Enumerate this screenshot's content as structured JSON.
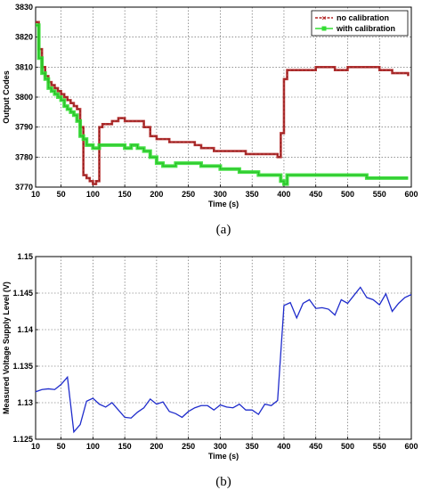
{
  "chart_data": [
    {
      "type": "line",
      "caption": "(a)",
      "xlabel": "Time (s)",
      "ylabel": "Output Codes",
      "xlim": [
        10,
        600
      ],
      "ylim": [
        3770,
        3830
      ],
      "xticks": [
        10,
        50,
        100,
        150,
        200,
        250,
        300,
        350,
        400,
        450,
        500,
        550,
        600
      ],
      "yticks": [
        3770,
        3780,
        3790,
        3800,
        3810,
        3820,
        3830
      ],
      "grid": true,
      "legend_position": "top-right",
      "series": [
        {
          "name": "no calibration",
          "color": "#b22222",
          "marker": "x",
          "x": [
            10,
            15,
            20,
            25,
            30,
            35,
            40,
            45,
            50,
            55,
            60,
            65,
            70,
            75,
            80,
            85,
            90,
            95,
            100,
            105,
            110,
            115,
            120,
            130,
            140,
            150,
            160,
            170,
            180,
            190,
            200,
            210,
            220,
            230,
            240,
            250,
            260,
            270,
            280,
            290,
            300,
            310,
            320,
            330,
            340,
            350,
            360,
            370,
            380,
            390,
            395,
            400,
            405,
            410,
            420,
            430,
            440,
            450,
            460,
            470,
            480,
            490,
            500,
            510,
            520,
            530,
            540,
            550,
            560,
            570,
            580,
            590,
            595
          ],
          "y": [
            3825,
            3816,
            3810,
            3807,
            3805,
            3804,
            3803,
            3802,
            3801,
            3800,
            3799,
            3798,
            3797,
            3796,
            3790,
            3774,
            3773,
            3772,
            3771,
            3772,
            3790,
            3791,
            3791,
            3792,
            3793,
            3792,
            3792,
            3792,
            3790,
            3787,
            3786,
            3786,
            3785,
            3785,
            3785,
            3785,
            3784,
            3783,
            3783,
            3782,
            3782,
            3782,
            3782,
            3782,
            3781,
            3781,
            3781,
            3781,
            3781,
            3780,
            3788,
            3806,
            3809,
            3809,
            3809,
            3809,
            3809,
            3810,
            3810,
            3810,
            3809,
            3809,
            3810,
            3810,
            3810,
            3810,
            3810,
            3809,
            3809,
            3808,
            3808,
            3808,
            3807
          ]
        },
        {
          "name": "with calibration",
          "color": "#33dd33",
          "marker": "s",
          "x": [
            10,
            15,
            20,
            25,
            30,
            35,
            40,
            45,
            50,
            55,
            60,
            65,
            70,
            75,
            80,
            85,
            90,
            95,
            100,
            110,
            120,
            130,
            140,
            150,
            160,
            170,
            180,
            190,
            200,
            210,
            220,
            230,
            240,
            250,
            260,
            270,
            280,
            290,
            300,
            310,
            320,
            330,
            340,
            350,
            360,
            370,
            380,
            390,
            395,
            400,
            405,
            410,
            420,
            430,
            440,
            450,
            460,
            470,
            480,
            490,
            500,
            510,
            520,
            530,
            540,
            550,
            560,
            570,
            580,
            590,
            595
          ],
          "y": [
            3824,
            3813,
            3808,
            3806,
            3803,
            3802,
            3801,
            3800,
            3799,
            3797,
            3796,
            3795,
            3794,
            3792,
            3787,
            3786,
            3784,
            3784,
            3783,
            3784,
            3784,
            3784,
            3784,
            3783,
            3784,
            3783,
            3782,
            3780,
            3778,
            3777,
            3777,
            3778,
            3778,
            3778,
            3778,
            3777,
            3777,
            3777,
            3776,
            3776,
            3776,
            3775,
            3775,
            3775,
            3774,
            3774,
            3774,
            3774,
            3772,
            3771,
            3774,
            3774,
            3774,
            3774,
            3774,
            3774,
            3774,
            3774,
            3774,
            3774,
            3774,
            3774,
            3774,
            3773,
            3773,
            3773,
            3773,
            3773,
            3773,
            3773,
            3773
          ]
        }
      ]
    },
    {
      "type": "line",
      "caption": "(b)",
      "xlabel": "Time (s)",
      "ylabel": "Measured Voltage Supply Level (V)",
      "xlim": [
        10,
        600
      ],
      "ylim": [
        1.125,
        1.15
      ],
      "xticks": [
        10,
        50,
        100,
        150,
        200,
        250,
        300,
        350,
        400,
        450,
        500,
        550,
        600
      ],
      "yticks": [
        1.125,
        1.13,
        1.135,
        1.14,
        1.145,
        1.15
      ],
      "ytick_labels": [
        "1.125",
        "1.13",
        "1.135",
        "1.14",
        "1.145",
        "1.15"
      ],
      "grid": true,
      "series": [
        {
          "color": "#1f2ccc",
          "x": [
            10,
            20,
            30,
            40,
            50,
            60,
            70,
            80,
            90,
            100,
            110,
            120,
            130,
            140,
            150,
            160,
            170,
            180,
            190,
            200,
            210,
            220,
            230,
            240,
            250,
            260,
            270,
            280,
            290,
            300,
            310,
            320,
            330,
            340,
            350,
            360,
            370,
            380,
            390,
            400,
            410,
            420,
            430,
            440,
            450,
            460,
            470,
            480,
            490,
            500,
            510,
            520,
            530,
            540,
            550,
            560,
            570,
            580,
            590,
            600
          ],
          "y": [
            1.1315,
            1.1318,
            1.1319,
            1.1318,
            1.1325,
            1.1335,
            1.126,
            1.127,
            1.1302,
            1.1306,
            1.1298,
            1.1294,
            1.13,
            1.129,
            1.128,
            1.1279,
            1.1287,
            1.1293,
            1.1305,
            1.1298,
            1.1301,
            1.1288,
            1.1285,
            1.128,
            1.1288,
            1.1293,
            1.1296,
            1.1296,
            1.129,
            1.1297,
            1.1294,
            1.1293,
            1.1298,
            1.129,
            1.129,
            1.1284,
            1.1298,
            1.1296,
            1.1303,
            1.1433,
            1.1437,
            1.1416,
            1.1436,
            1.1441,
            1.1429,
            1.143,
            1.1428,
            1.142,
            1.1441,
            1.1436,
            1.1447,
            1.1458,
            1.1444,
            1.1441,
            1.1434,
            1.1449,
            1.1425,
            1.1436,
            1.1444,
            1.1448
          ]
        }
      ]
    }
  ]
}
